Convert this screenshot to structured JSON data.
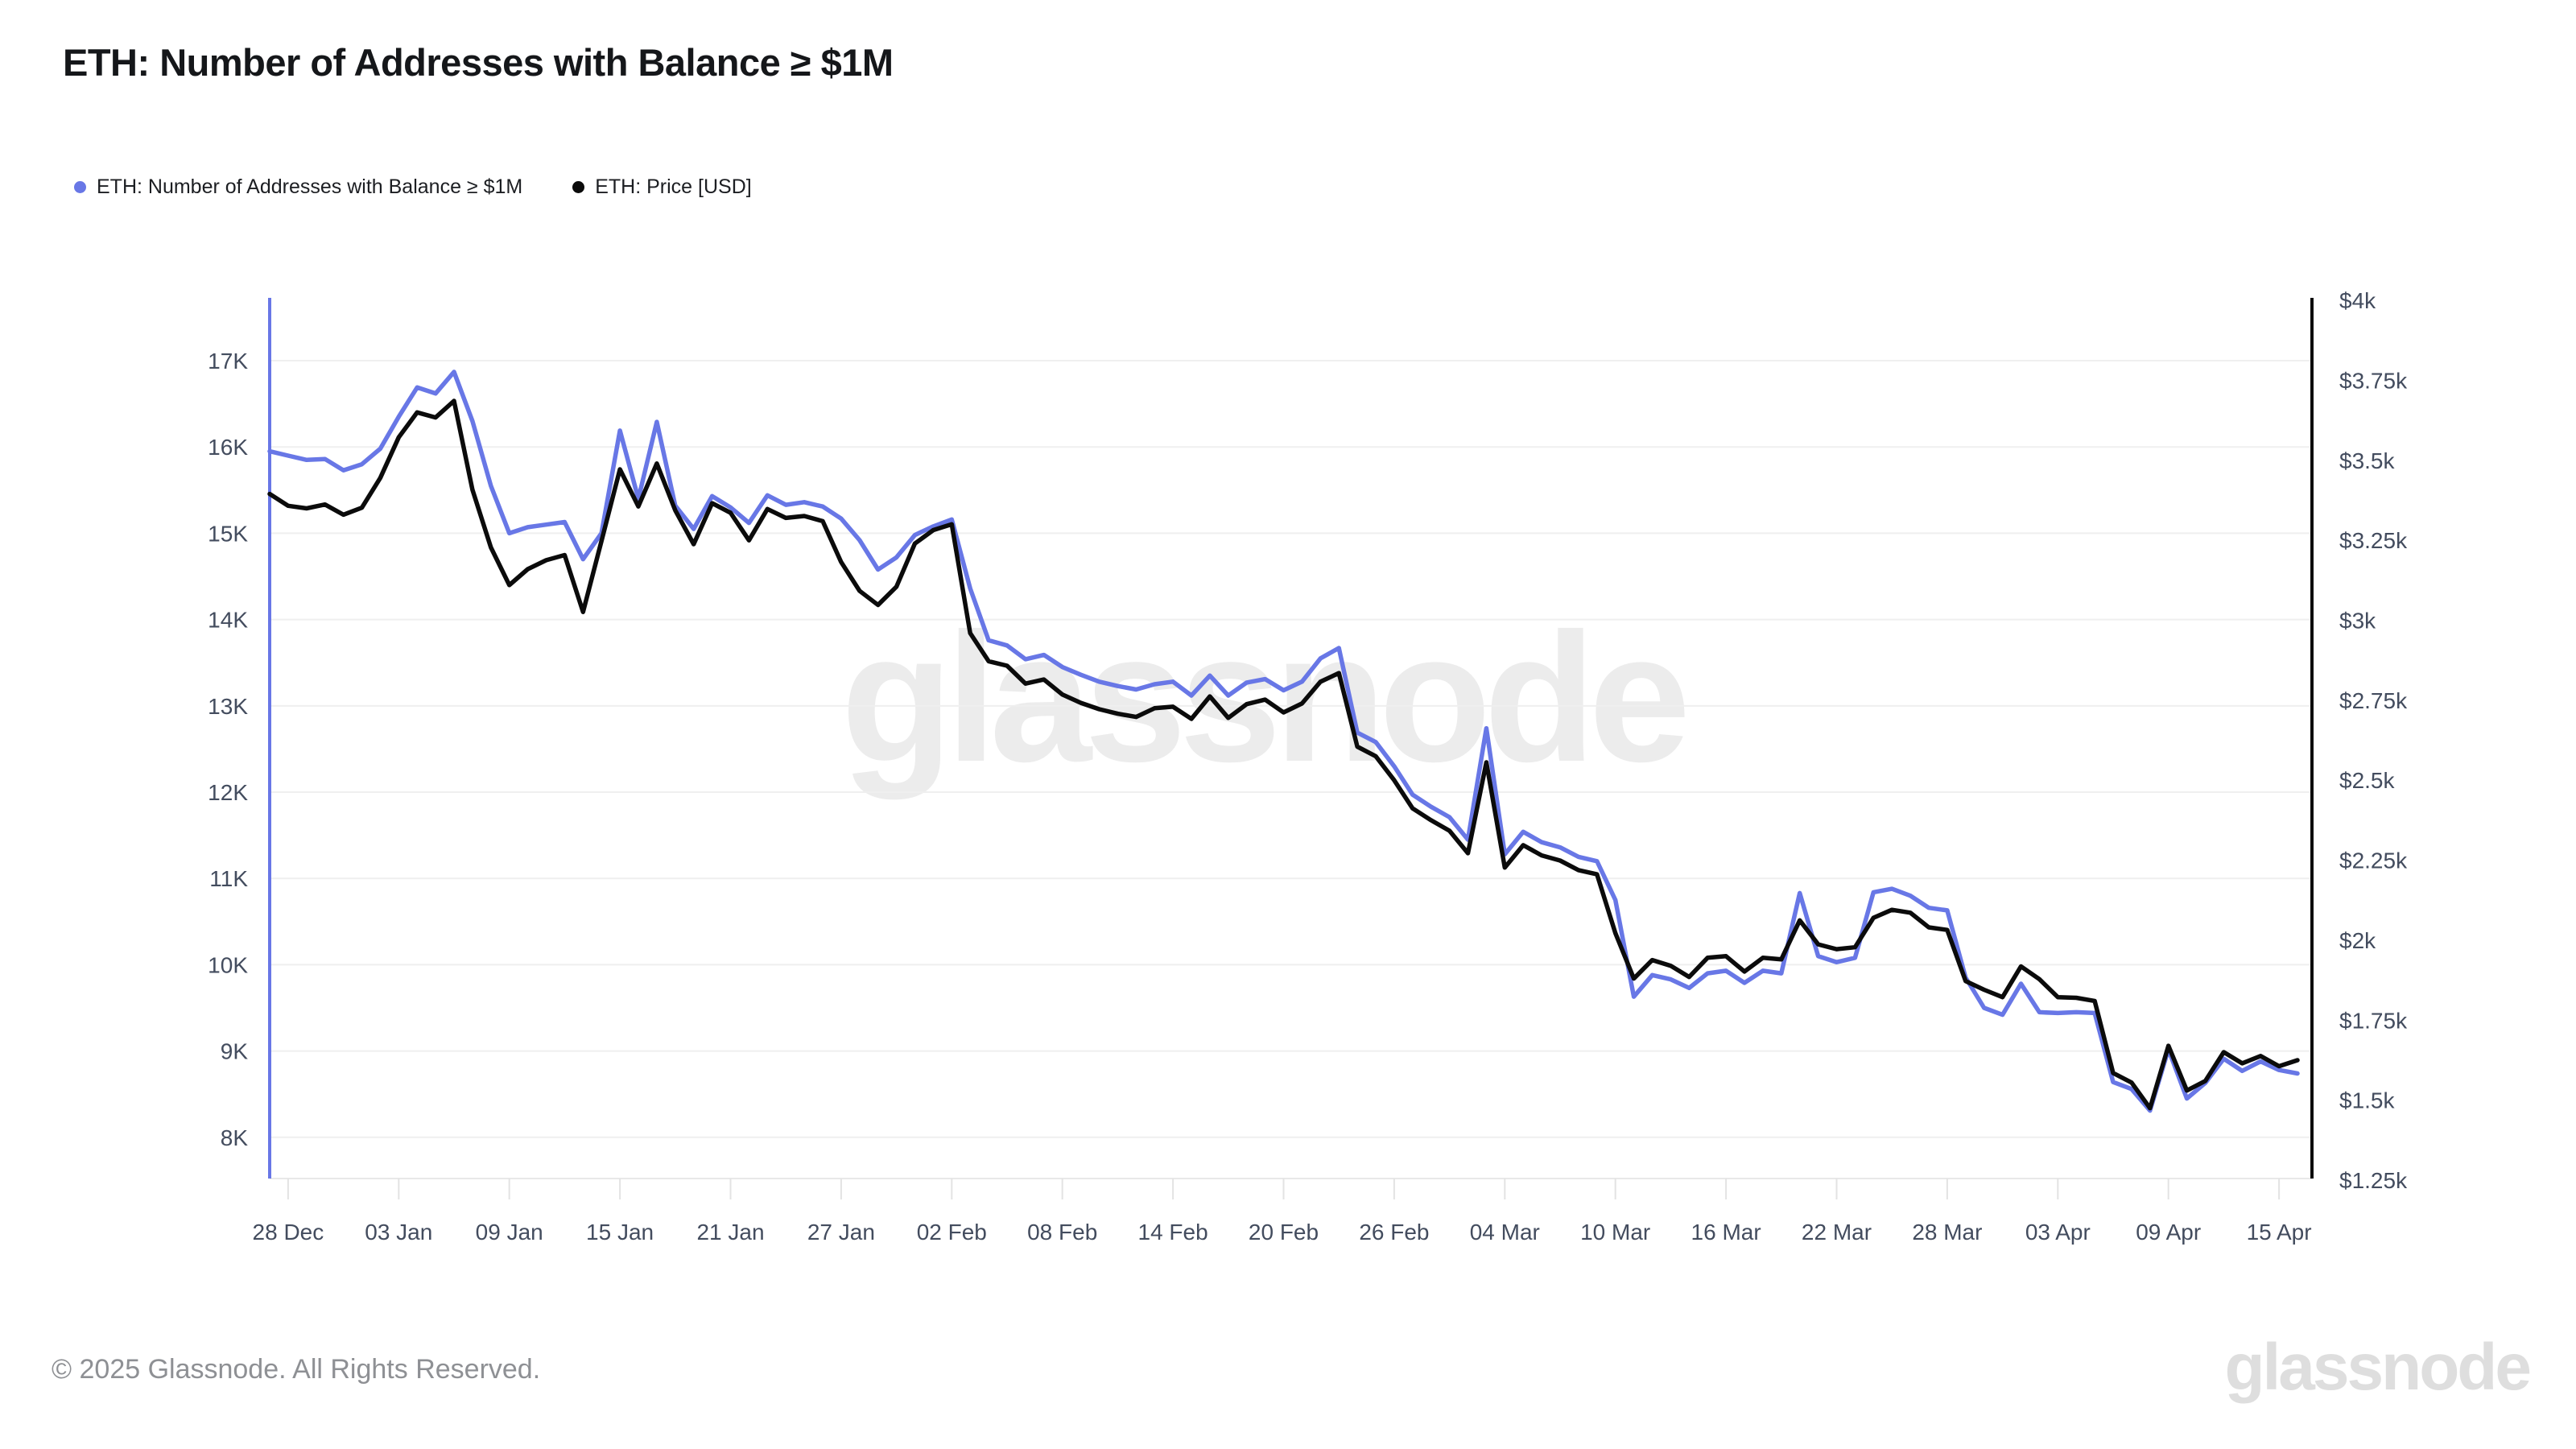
{
  "page": {
    "title": "ETH: Number of Addresses with Balance ≥ $1M"
  },
  "legend": [
    {
      "label": "ETH: Number of Addresses with Balance ≥ $1M",
      "color": "#6877E6"
    },
    {
      "label": "ETH: Price [USD]",
      "color": "#0B0B0B"
    }
  ],
  "watermark": "glassnode",
  "footer": {
    "copyright": "© 2025 Glassnode. All Rights Reserved.",
    "brand": "glassnode"
  },
  "chart_data": {
    "type": "line",
    "title": "ETH: Number of Addresses with Balance ≥ $1M",
    "grid": "horizontal",
    "legend_position": "top-left",
    "start_date": "2024-12-27",
    "end_date": "2025-04-16",
    "x_axis": {
      "tick_labels": [
        "28 Dec",
        "03 Jan",
        "09 Jan",
        "15 Jan",
        "21 Jan",
        "27 Jan",
        "02 Feb",
        "08 Feb",
        "14 Feb",
        "20 Feb",
        "26 Feb",
        "04 Mar",
        "10 Mar",
        "16 Mar",
        "22 Mar",
        "28 Mar",
        "03 Apr",
        "09 Apr",
        "15 Apr"
      ],
      "tick_indices": [
        1,
        7,
        13,
        19,
        25,
        31,
        37,
        43,
        49,
        55,
        61,
        67,
        73,
        79,
        85,
        91,
        97,
        103,
        109
      ]
    },
    "left_axis": {
      "label": "Number of Addresses with Balance ≥ $1M",
      "min": 7541,
      "max": 17728,
      "tick_values": [
        17000,
        16000,
        15000,
        14000,
        13000,
        12000,
        11000,
        10000,
        9000,
        8000
      ],
      "tick_labels": [
        "17K",
        "16K",
        "15K",
        "14K",
        "13K",
        "12K",
        "11K",
        "10K",
        "9K",
        "8K"
      ]
    },
    "right_axis": {
      "label": "ETH Price [USD]",
      "min": 1260,
      "max": 4008,
      "tick_values": [
        4000,
        3750,
        3500,
        3250,
        3000,
        2750,
        2500,
        2250,
        2000,
        1750,
        1500,
        1250
      ],
      "tick_labels": [
        "$4k",
        "$3.75k",
        "$3.5k",
        "$3.25k",
        "$3k",
        "$2.75k",
        "$2.5k",
        "$2.25k",
        "$2k",
        "$1.75k",
        "$1.5k",
        "$1.25k"
      ]
    },
    "series": [
      {
        "name": "ETH: Number of Addresses with Balance ≥ $1M",
        "axis": "left",
        "color": "#6877E6",
        "values": [
          15950,
          15900,
          15850,
          15860,
          15730,
          15800,
          15980,
          16350,
          16690,
          16620,
          16870,
          16300,
          15550,
          15000,
          15070,
          15100,
          15130,
          14700,
          15000,
          16190,
          15400,
          16290,
          15320,
          15050,
          15430,
          15300,
          15120,
          15440,
          15330,
          15360,
          15310,
          15170,
          14920,
          14580,
          14720,
          14980,
          15080,
          15160,
          14360,
          13760,
          13700,
          13540,
          13590,
          13450,
          13360,
          13280,
          13230,
          13190,
          13250,
          13280,
          13120,
          13350,
          13120,
          13270,
          13310,
          13180,
          13280,
          13550,
          13670,
          12690,
          12580,
          12300,
          11970,
          11830,
          11710,
          11450,
          12740,
          11280,
          11540,
          11420,
          11360,
          11250,
          11200,
          10750,
          9630,
          9880,
          9830,
          9730,
          9900,
          9930,
          9790,
          9930,
          9900,
          10830,
          10100,
          10030,
          10080,
          10840,
          10880,
          10800,
          10660,
          10630,
          9850,
          9500,
          9420,
          9780,
          9450,
          9440,
          9450,
          9440,
          8640,
          8560,
          8310,
          9020,
          8450,
          8630,
          8910,
          8770,
          8880,
          8780,
          8740
        ]
      },
      {
        "name": "ETH: Price [USD]",
        "axis": "right",
        "color": "#0B0B0B",
        "values": [
          3395,
          3358,
          3350,
          3362,
          3330,
          3352,
          3445,
          3572,
          3650,
          3634,
          3686,
          3408,
          3228,
          3110,
          3160,
          3188,
          3204,
          3026,
          3248,
          3472,
          3356,
          3490,
          3344,
          3238,
          3366,
          3336,
          3250,
          3348,
          3320,
          3326,
          3310,
          3182,
          3092,
          3048,
          3105,
          3240,
          3282,
          3300,
          2960,
          2872,
          2858,
          2802,
          2815,
          2768,
          2742,
          2722,
          2708,
          2698,
          2725,
          2730,
          2692,
          2762,
          2695,
          2738,
          2752,
          2712,
          2740,
          2808,
          2835,
          2605,
          2575,
          2500,
          2412,
          2375,
          2342,
          2272,
          2556,
          2227,
          2297,
          2265,
          2249,
          2219,
          2206,
          2022,
          1880,
          1938,
          1920,
          1885,
          1945,
          1950,
          1902,
          1945,
          1940,
          2062,
          1987,
          1972,
          1978,
          2070,
          2095,
          2086,
          2040,
          2032,
          1872,
          1845,
          1822,
          1918,
          1878,
          1822,
          1820,
          1810,
          1585,
          1555,
          1475,
          1670,
          1530,
          1560,
          1650,
          1615,
          1638,
          1606,
          1625
        ]
      }
    ]
  }
}
